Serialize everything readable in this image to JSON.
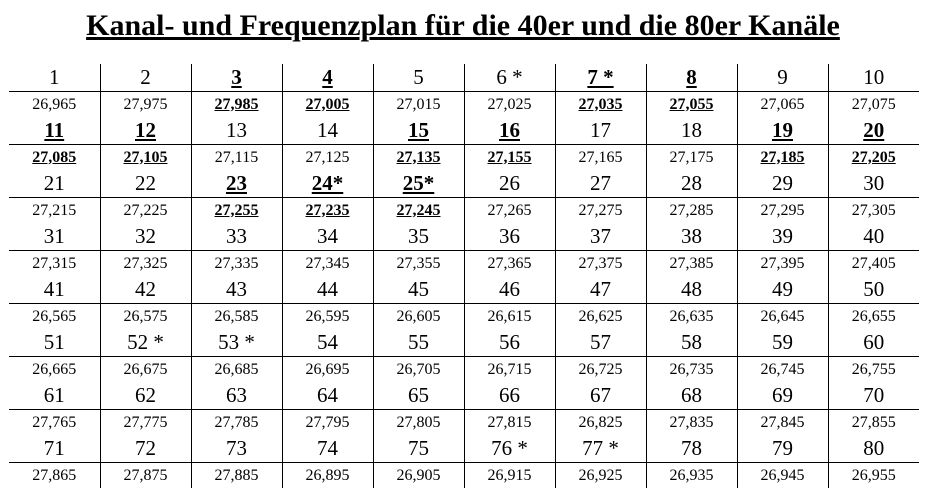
{
  "title": "Kanal- und Frequenzplan für die 40er und die 80er Kanäle",
  "rows": [
    {
      "channels": [
        {
          "label": "1",
          "hl": false
        },
        {
          "label": "2",
          "hl": false
        },
        {
          "label": "3",
          "hl": true
        },
        {
          "label": "4",
          "hl": true
        },
        {
          "label": "5",
          "hl": false
        },
        {
          "label": "6 *",
          "hl": false
        },
        {
          "label": "7 *",
          "hl": true
        },
        {
          "label": "8",
          "hl": true
        },
        {
          "label": "9",
          "hl": false
        },
        {
          "label": "10",
          "hl": false
        }
      ],
      "freqs": [
        {
          "label": "26,965",
          "hl": false
        },
        {
          "label": "27,975",
          "hl": false
        },
        {
          "label": "27,985",
          "hl": true
        },
        {
          "label": "27,005",
          "hl": true
        },
        {
          "label": "27,015",
          "hl": false
        },
        {
          "label": "27,025",
          "hl": false
        },
        {
          "label": "27,035",
          "hl": true
        },
        {
          "label": "27,055",
          "hl": true
        },
        {
          "label": "27,065",
          "hl": false
        },
        {
          "label": "27,075",
          "hl": false
        }
      ]
    },
    {
      "channels": [
        {
          "label": "11",
          "hl": true
        },
        {
          "label": "12",
          "hl": true
        },
        {
          "label": "13",
          "hl": false
        },
        {
          "label": "14",
          "hl": false
        },
        {
          "label": "15",
          "hl": true
        },
        {
          "label": "16",
          "hl": true
        },
        {
          "label": "17",
          "hl": false
        },
        {
          "label": "18",
          "hl": false
        },
        {
          "label": "19",
          "hl": true
        },
        {
          "label": "20",
          "hl": true
        }
      ],
      "freqs": [
        {
          "label": "27,085",
          "hl": true
        },
        {
          "label": "27,105",
          "hl": true
        },
        {
          "label": "27,115",
          "hl": false
        },
        {
          "label": "27,125",
          "hl": false
        },
        {
          "label": "27,135",
          "hl": true
        },
        {
          "label": "27,155",
          "hl": true
        },
        {
          "label": "27,165",
          "hl": false
        },
        {
          "label": "27,175",
          "hl": false
        },
        {
          "label": "27,185",
          "hl": true
        },
        {
          "label": "27,205",
          "hl": true
        }
      ]
    },
    {
      "channels": [
        {
          "label": "21",
          "hl": false
        },
        {
          "label": "22",
          "hl": false
        },
        {
          "label": "23",
          "hl": true
        },
        {
          "label": "24*",
          "hl": true
        },
        {
          "label": "25*",
          "hl": true
        },
        {
          "label": "26",
          "hl": false
        },
        {
          "label": "27",
          "hl": false
        },
        {
          "label": "28",
          "hl": false
        },
        {
          "label": "29",
          "hl": false
        },
        {
          "label": "30",
          "hl": false
        }
      ],
      "freqs": [
        {
          "label": "27,215",
          "hl": false
        },
        {
          "label": "27,225",
          "hl": false
        },
        {
          "label": "27,255",
          "hl": true
        },
        {
          "label": "27,235",
          "hl": true
        },
        {
          "label": "27,245",
          "hl": true
        },
        {
          "label": "27,265",
          "hl": false
        },
        {
          "label": "27,275",
          "hl": false
        },
        {
          "label": "27,285",
          "hl": false
        },
        {
          "label": "27,295",
          "hl": false
        },
        {
          "label": "27,305",
          "hl": false
        }
      ]
    },
    {
      "channels": [
        {
          "label": "31",
          "hl": false
        },
        {
          "label": "32",
          "hl": false
        },
        {
          "label": "33",
          "hl": false
        },
        {
          "label": "34",
          "hl": false
        },
        {
          "label": "35",
          "hl": false
        },
        {
          "label": "36",
          "hl": false
        },
        {
          "label": "37",
          "hl": false
        },
        {
          "label": "38",
          "hl": false
        },
        {
          "label": "39",
          "hl": false
        },
        {
          "label": "40",
          "hl": false
        }
      ],
      "freqs": [
        {
          "label": "27,315",
          "hl": false
        },
        {
          "label": "27,325",
          "hl": false
        },
        {
          "label": "27,335",
          "hl": false
        },
        {
          "label": "27,345",
          "hl": false
        },
        {
          "label": "27,355",
          "hl": false
        },
        {
          "label": "27,365",
          "hl": false
        },
        {
          "label": "27,375",
          "hl": false
        },
        {
          "label": "27,385",
          "hl": false
        },
        {
          "label": "27,395",
          "hl": false
        },
        {
          "label": "27,405",
          "hl": false
        }
      ]
    },
    {
      "channels": [
        {
          "label": "41",
          "hl": false
        },
        {
          "label": "42",
          "hl": false
        },
        {
          "label": "43",
          "hl": false
        },
        {
          "label": "44",
          "hl": false
        },
        {
          "label": "45",
          "hl": false
        },
        {
          "label": "46",
          "hl": false
        },
        {
          "label": "47",
          "hl": false
        },
        {
          "label": "48",
          "hl": false
        },
        {
          "label": "49",
          "hl": false
        },
        {
          "label": "50",
          "hl": false
        }
      ],
      "freqs": [
        {
          "label": "26,565",
          "hl": false
        },
        {
          "label": "26,575",
          "hl": false
        },
        {
          "label": "26,585",
          "hl": false
        },
        {
          "label": "26,595",
          "hl": false
        },
        {
          "label": "26,605",
          "hl": false
        },
        {
          "label": "26,615",
          "hl": false
        },
        {
          "label": "26,625",
          "hl": false
        },
        {
          "label": "26,635",
          "hl": false
        },
        {
          "label": "26,645",
          "hl": false
        },
        {
          "label": "26,655",
          "hl": false
        }
      ]
    },
    {
      "channels": [
        {
          "label": "51",
          "hl": false
        },
        {
          "label": "52 *",
          "hl": false
        },
        {
          "label": "53 *",
          "hl": false
        },
        {
          "label": "54",
          "hl": false
        },
        {
          "label": "55",
          "hl": false
        },
        {
          "label": "56",
          "hl": false
        },
        {
          "label": "57",
          "hl": false
        },
        {
          "label": "58",
          "hl": false
        },
        {
          "label": "59",
          "hl": false
        },
        {
          "label": "60",
          "hl": false
        }
      ],
      "freqs": [
        {
          "label": "26,665",
          "hl": false
        },
        {
          "label": "26,675",
          "hl": false
        },
        {
          "label": "26,685",
          "hl": false
        },
        {
          "label": "26,695",
          "hl": false
        },
        {
          "label": "26,705",
          "hl": false
        },
        {
          "label": "26,715",
          "hl": false
        },
        {
          "label": "26,725",
          "hl": false
        },
        {
          "label": "26,735",
          "hl": false
        },
        {
          "label": "26,745",
          "hl": false
        },
        {
          "label": "26,755",
          "hl": false
        }
      ]
    },
    {
      "channels": [
        {
          "label": "61",
          "hl": false
        },
        {
          "label": "62",
          "hl": false
        },
        {
          "label": "63",
          "hl": false
        },
        {
          "label": "64",
          "hl": false
        },
        {
          "label": "65",
          "hl": false
        },
        {
          "label": "66",
          "hl": false
        },
        {
          "label": "67",
          "hl": false
        },
        {
          "label": "68",
          "hl": false
        },
        {
          "label": "69",
          "hl": false
        },
        {
          "label": "70",
          "hl": false
        }
      ],
      "freqs": [
        {
          "label": "27,765",
          "hl": false
        },
        {
          "label": "27,775",
          "hl": false
        },
        {
          "label": "27,785",
          "hl": false
        },
        {
          "label": "27,795",
          "hl": false
        },
        {
          "label": "27,805",
          "hl": false
        },
        {
          "label": "27,815",
          "hl": false
        },
        {
          "label": "26,825",
          "hl": false
        },
        {
          "label": "27,835",
          "hl": false
        },
        {
          "label": "27,845",
          "hl": false
        },
        {
          "label": "27,855",
          "hl": false
        }
      ]
    },
    {
      "channels": [
        {
          "label": "71",
          "hl": false
        },
        {
          "label": "72",
          "hl": false
        },
        {
          "label": "73",
          "hl": false
        },
        {
          "label": "74",
          "hl": false
        },
        {
          "label": "75",
          "hl": false
        },
        {
          "label": "76 *",
          "hl": false
        },
        {
          "label": "77 *",
          "hl": false
        },
        {
          "label": "78",
          "hl": false
        },
        {
          "label": "79",
          "hl": false
        },
        {
          "label": "80",
          "hl": false
        }
      ],
      "freqs": [
        {
          "label": "27,865",
          "hl": false
        },
        {
          "label": "27,875",
          "hl": false
        },
        {
          "label": "27,885",
          "hl": false
        },
        {
          "label": "26,895",
          "hl": false
        },
        {
          "label": "26,905",
          "hl": false
        },
        {
          "label": "26,915",
          "hl": false
        },
        {
          "label": "26,925",
          "hl": false
        },
        {
          "label": "26,935",
          "hl": false
        },
        {
          "label": "26,945",
          "hl": false
        },
        {
          "label": "26,955",
          "hl": false
        }
      ]
    }
  ]
}
